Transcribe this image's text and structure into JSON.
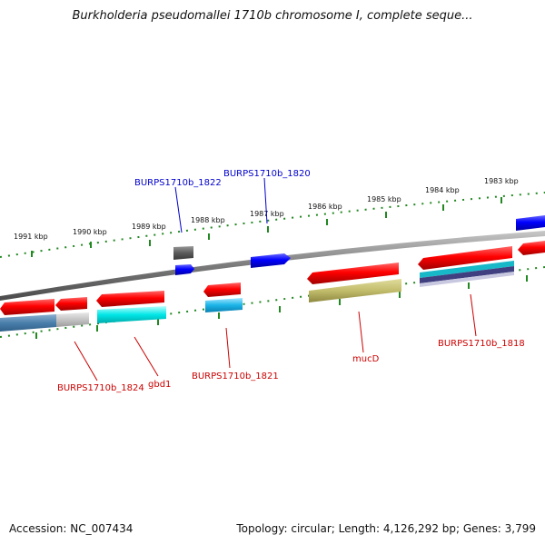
{
  "title": "Burkholderia pseudomallei 1710b chromosome I, complete seque...",
  "footer": {
    "accession": "Accession: NC_007434",
    "summary": "Topology: circular; Length: 4,126,292 bp; Genes: 3,799"
  },
  "colors": {
    "forward_label": "#0000cc",
    "reverse_label": "#cc0000",
    "tick": "#228822",
    "backbone": "#808080"
  },
  "ticks": [
    "1991 kbp",
    "1990 kbp",
    "1989 kbp",
    "1988 kbp",
    "1987 kbp",
    "1986 kbp",
    "1985 kbp",
    "1984 kbp",
    "1983 kbp"
  ],
  "labels": {
    "BURPS1710b_1822": "BURPS1710b_1822",
    "BURPS1710b_1820": "BURPS1710b_1820",
    "BURPS1710b_1824": "BURPS1710b_1824",
    "gbd1": "gbd1",
    "BURPS1710b_1821": "BURPS1710b_1821",
    "mucD": "mucD",
    "BURPS1710b_1818": "BURPS1710b_1818"
  }
}
